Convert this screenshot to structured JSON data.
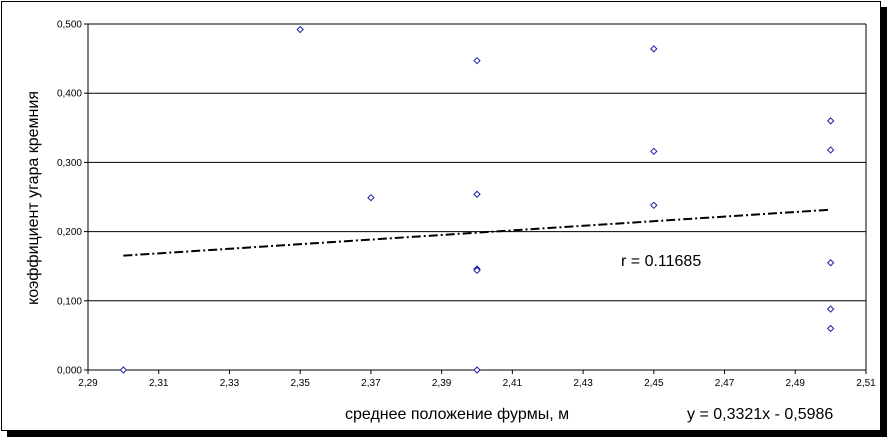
{
  "chart_data": {
    "type": "scatter",
    "xlabel": "среднее положение фурмы, м",
    "ylabel": "коэффициент угара кремния",
    "xlim": [
      2.29,
      2.51
    ],
    "ylim": [
      0,
      0.5
    ],
    "x_ticks": [
      "2,29",
      "2,31",
      "2,33",
      "2,35",
      "2,37",
      "2,39",
      "2,41",
      "2,43",
      "2,45",
      "2,47",
      "2,49",
      "2,51"
    ],
    "y_ticks": [
      "0,000",
      "0,100",
      "0,200",
      "0,300",
      "0,400",
      "0,500"
    ],
    "grid": true,
    "points": [
      {
        "x": 2.3,
        "y": 0.0
      },
      {
        "x": 2.35,
        "y": 0.492
      },
      {
        "x": 2.37,
        "y": 0.249
      },
      {
        "x": 2.4,
        "y": 0.447
      },
      {
        "x": 2.4,
        "y": 0.254
      },
      {
        "x": 2.4,
        "y": 0.146
      },
      {
        "x": 2.4,
        "y": 0.144
      },
      {
        "x": 2.4,
        "y": 0.0
      },
      {
        "x": 2.45,
        "y": 0.464
      },
      {
        "x": 2.45,
        "y": 0.316
      },
      {
        "x": 2.45,
        "y": 0.238
      },
      {
        "x": 2.5,
        "y": 0.36
      },
      {
        "x": 2.5,
        "y": 0.318
      },
      {
        "x": 2.5,
        "y": 0.155
      },
      {
        "x": 2.5,
        "y": 0.088
      },
      {
        "x": 2.5,
        "y": 0.06
      }
    ],
    "trendline": {
      "slope": 0.3321,
      "intercept": -0.5986,
      "x_range": [
        2.3,
        2.5
      ]
    },
    "annotations": {
      "correlation": "r = 0.11685",
      "equation": "y = 0,3321x - 0,5986"
    },
    "colors": {
      "marker": "#1f1fa8",
      "grid": "#000000",
      "trend": "#000000"
    }
  }
}
